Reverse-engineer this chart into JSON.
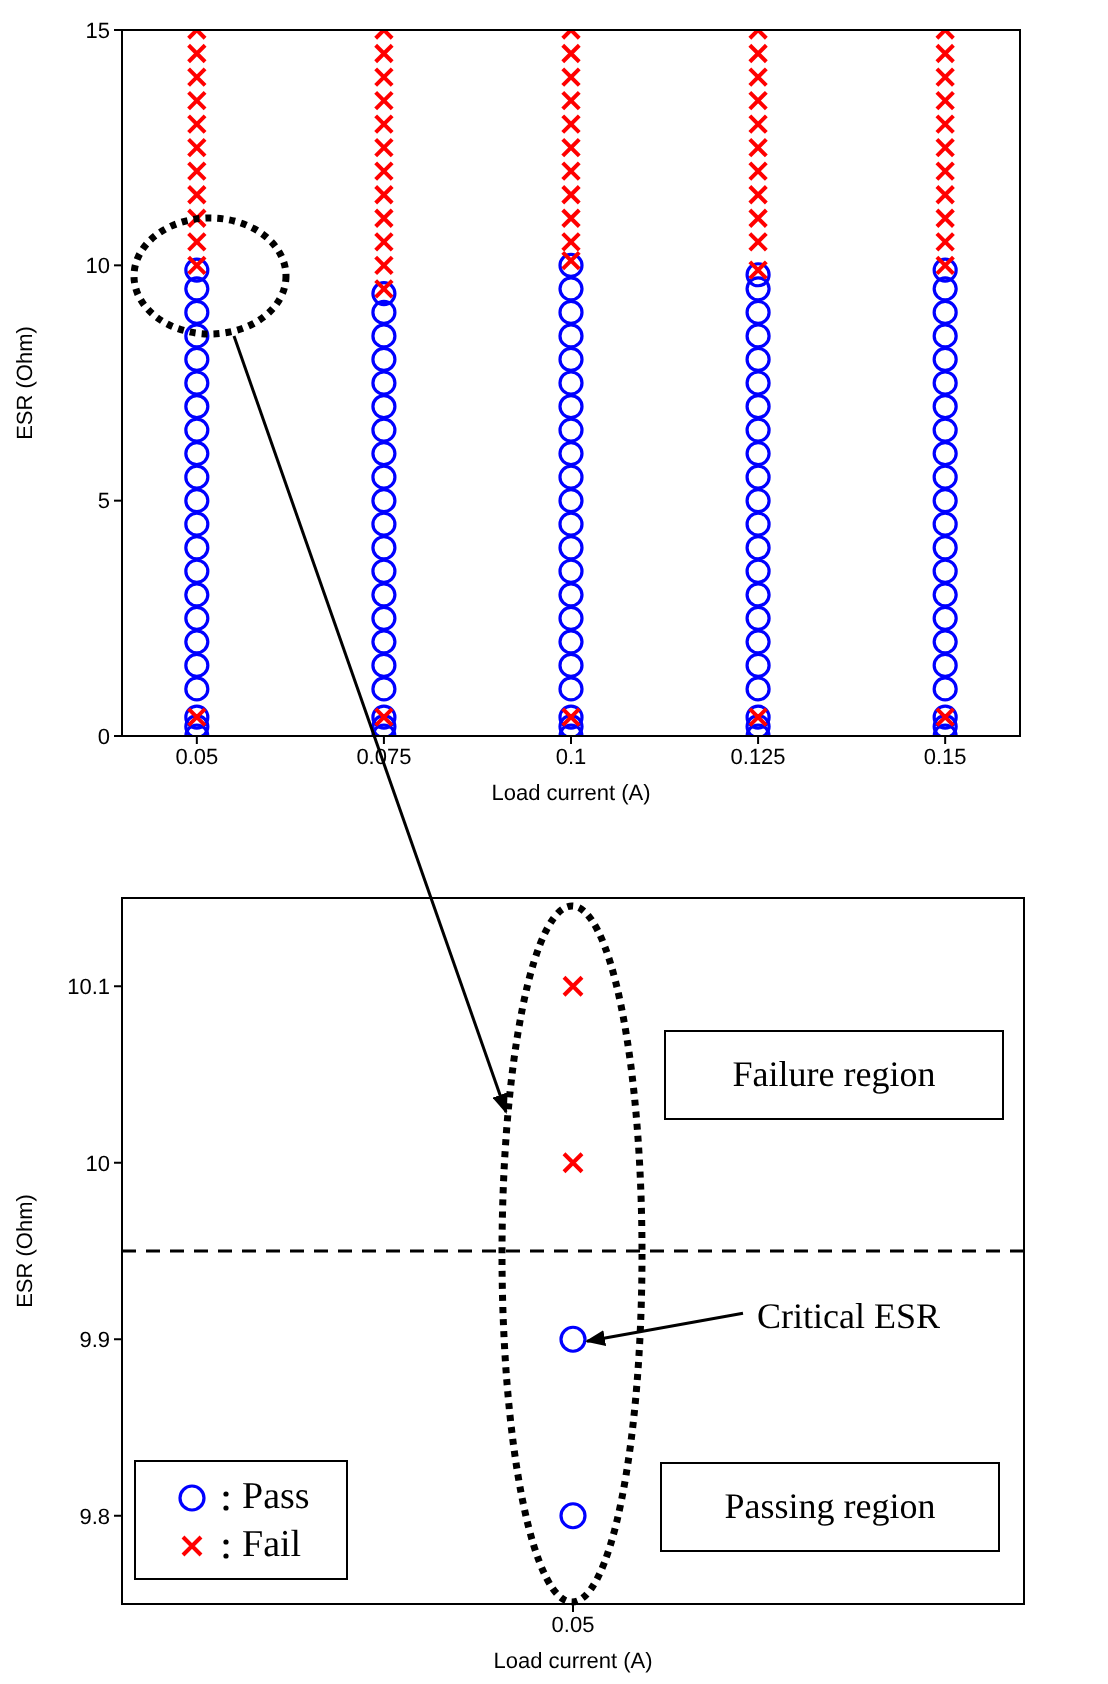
{
  "chart_data": [
    {
      "type": "scatter",
      "xlabel": "Load current (A)",
      "ylabel": "ESR (Ohm)",
      "xlim": [
        0.04,
        0.16
      ],
      "xticks": [
        0.05,
        0.075,
        0.1,
        0.125,
        0.15
      ],
      "ylim": [
        0,
        15
      ],
      "yticks": [
        0,
        5,
        10,
        15
      ],
      "series": [
        {
          "color": "#0000ff",
          "marker": "circle",
          "x": [
            0.05,
            0.05,
            0.05,
            0.05,
            0.05,
            0.05,
            0.05,
            0.05,
            0.05,
            0.05,
            0.05,
            0.05,
            0.05,
            0.05,
            0.05,
            0.05,
            0.05,
            0.05,
            0.05,
            0.05,
            0.05,
            0.05,
            0.075,
            0.075,
            0.075,
            0.075,
            0.075,
            0.075,
            0.075,
            0.075,
            0.075,
            0.075,
            0.075,
            0.075,
            0.075,
            0.075,
            0.075,
            0.075,
            0.075,
            0.075,
            0.075,
            0.075,
            0.075,
            0.1,
            0.1,
            0.1,
            0.1,
            0.1,
            0.1,
            0.1,
            0.1,
            0.1,
            0.1,
            0.1,
            0.1,
            0.1,
            0.1,
            0.1,
            0.1,
            0.1,
            0.1,
            0.1,
            0.1,
            0.1,
            0.1,
            0.125,
            0.125,
            0.125,
            0.125,
            0.125,
            0.125,
            0.125,
            0.125,
            0.125,
            0.125,
            0.125,
            0.125,
            0.125,
            0.125,
            0.125,
            0.125,
            0.125,
            0.125,
            0.125,
            0.125,
            0.125,
            0.125,
            0.15,
            0.15,
            0.15,
            0.15,
            0.15,
            0.15,
            0.15,
            0.15,
            0.15,
            0.15,
            0.15,
            0.15,
            0.15,
            0.15,
            0.15,
            0.15,
            0.15,
            0.15,
            0.15,
            0.15,
            0.15,
            0.15
          ],
          "values": [
            0,
            0.2,
            0.4,
            1,
            1.5,
            2,
            2.5,
            3,
            3.5,
            4,
            4.5,
            5,
            5.5,
            6,
            6.5,
            7,
            7.5,
            8,
            8.5,
            9,
            9.5,
            9.9,
            0,
            0.2,
            0.4,
            1,
            1.5,
            2,
            2.5,
            3,
            3.5,
            4,
            4.5,
            5,
            5.5,
            6,
            6.5,
            7,
            7.5,
            8,
            8.5,
            9,
            9.4,
            0,
            0.2,
            0.4,
            1,
            1.5,
            2,
            2.5,
            3,
            3.5,
            4,
            4.5,
            5,
            5.5,
            6,
            6.5,
            7,
            7.5,
            8,
            8.5,
            9,
            9.5,
            10,
            0,
            0.2,
            0.4,
            1,
            1.5,
            2,
            2.5,
            3,
            3.5,
            4,
            4.5,
            5,
            5.5,
            6,
            6.5,
            7,
            7.5,
            8,
            8.5,
            9,
            9.5,
            9.8,
            0,
            0.2,
            0.4,
            1,
            1.5,
            2,
            2.5,
            3,
            3.5,
            4,
            4.5,
            5,
            5.5,
            6,
            6.5,
            7,
            7.5,
            8,
            8.5,
            9,
            9.5,
            9.9
          ]
        },
        {
          "color": "#ff0000",
          "marker": "cross",
          "x": [
            0.05,
            0.05,
            0.05,
            0.05,
            0.05,
            0.05,
            0.05,
            0.05,
            0.05,
            0.05,
            0.05,
            0.05,
            0.075,
            0.075,
            0.075,
            0.075,
            0.075,
            0.075,
            0.075,
            0.075,
            0.075,
            0.075,
            0.075,
            0.075,
            0.075,
            0.1,
            0.1,
            0.1,
            0.1,
            0.1,
            0.1,
            0.1,
            0.1,
            0.1,
            0.1,
            0.1,
            0.1,
            0.125,
            0.125,
            0.125,
            0.125,
            0.125,
            0.125,
            0.125,
            0.125,
            0.125,
            0.125,
            0.125,
            0.125,
            0.15,
            0.15,
            0.15,
            0.15,
            0.15,
            0.15,
            0.15,
            0.15,
            0.15,
            0.15,
            0.15,
            0.15
          ],
          "values": [
            0.4,
            10,
            10.5,
            11,
            11.5,
            12,
            12.5,
            13,
            13.5,
            14,
            14.5,
            15,
            0.4,
            9.5,
            10,
            10.5,
            11,
            11.5,
            12,
            12.5,
            13,
            13.5,
            14,
            14.5,
            15,
            0.4,
            10.1,
            10.5,
            11,
            11.5,
            12,
            12.5,
            13,
            13.5,
            14,
            14.5,
            15,
            0.4,
            9.9,
            10.5,
            11,
            11.5,
            12,
            12.5,
            13,
            13.5,
            14,
            14.5,
            15,
            0.4,
            10,
            10.5,
            11,
            11.5,
            12,
            12.5,
            13,
            13.5,
            14,
            14.5,
            15
          ]
        }
      ]
    },
    {
      "type": "scatter",
      "xlabel": "Load current (A)",
      "ylabel": "ESR (Ohm)",
      "categories": [
        "0.05"
      ],
      "ylim": [
        9.75,
        10.15
      ],
      "yticks": [
        9.8,
        9.9,
        10,
        10.1
      ],
      "legend": "bottom left",
      "series": [
        {
          "name": "Pass",
          "color": "#0000ff",
          "marker": "circle",
          "x": [
            "0.05",
            "0.05"
          ],
          "values": [
            9.8,
            9.9
          ]
        },
        {
          "name": "Fail",
          "color": "#ff0000",
          "marker": "cross",
          "x": [
            "0.05",
            "0.05"
          ],
          "values": [
            10,
            10.1
          ]
        }
      ],
      "ref_lines": [
        {
          "axis": "y",
          "value": 9.95,
          "color": "#000000",
          "line_style": "dashed"
        }
      ],
      "annotations": [
        "Failure region",
        {
          "text": "Critical ESR",
          "x": "0.05",
          "y": 9.9
        },
        "Passing region"
      ]
    }
  ]
}
